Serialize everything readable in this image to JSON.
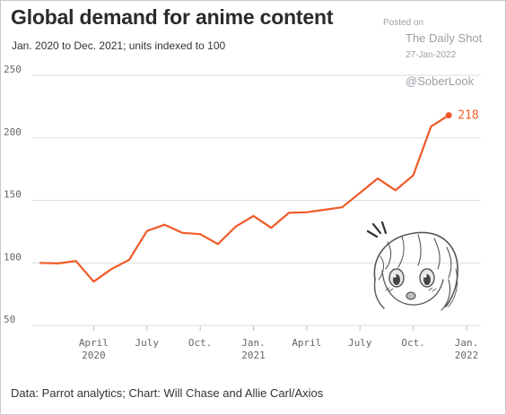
{
  "header": {
    "title": "Global demand for anime content",
    "subtitle": "Jan. 2020 to Dec. 2021; units indexed to 100"
  },
  "watermark": {
    "posted": "Posted on",
    "site": "The Daily Shot",
    "date": "27-Jan-2022",
    "handle": "@SoberLook"
  },
  "source": "Data: Parrot analytics; Chart: Will Chase and Allie Carl/Axios",
  "colors": {
    "line": "#f05a28",
    "grid": "#dddddd",
    "text": "#2b2b2b"
  },
  "illustration": "anime-girl-sketch",
  "chart_data": {
    "type": "line",
    "title": "Global demand for anime content",
    "subtitle": "Jan. 2020 to Dec. 2021; units indexed to 100",
    "xlabel": "",
    "ylabel": "",
    "ylim": [
      50,
      250
    ],
    "yticks": [
      "250",
      "200",
      "150",
      "100",
      "50"
    ],
    "grid": true,
    "x_ticks": [
      {
        "x": 3,
        "line1": "April",
        "line2": "2020"
      },
      {
        "x": 6,
        "line1": "July",
        "line2": ""
      },
      {
        "x": 9,
        "line1": "Oct.",
        "line2": ""
      },
      {
        "x": 12,
        "line1": "Jan.",
        "line2": "2021"
      },
      {
        "x": 15,
        "line1": "April",
        "line2": ""
      },
      {
        "x": 18,
        "line1": "July",
        "line2": ""
      },
      {
        "x": 21,
        "line1": "Oct.",
        "line2": ""
      },
      {
        "x": 24,
        "line1": "Jan.",
        "line2": "2022"
      }
    ],
    "series": [
      {
        "x": [
          "Jan 2020",
          "Feb 2020",
          "Mar 2020",
          "Apr 2020",
          "May 2020",
          "Jun 2020",
          "Jul 2020",
          "Aug 2020",
          "Sep 2020",
          "Oct 2020",
          "Nov 2020",
          "Dec 2020",
          "Jan 2021",
          "Feb 2021",
          "Mar 2021",
          "Apr 2021",
          "May 2021",
          "Jun 2021",
          "Jul 2021",
          "Aug 2021",
          "Sep 2021",
          "Oct 2021",
          "Nov 2021",
          "Dec 2021"
        ],
        "values": [
          100,
          99.5,
          101.5,
          85,
          95,
          102.5,
          125.5,
          130.5,
          124,
          123,
          115,
          129,
          137.5,
          128,
          140,
          140.5,
          142.5,
          144.5,
          156,
          167.5,
          158,
          170,
          209,
          218
        ]
      }
    ],
    "end_label": "218"
  }
}
